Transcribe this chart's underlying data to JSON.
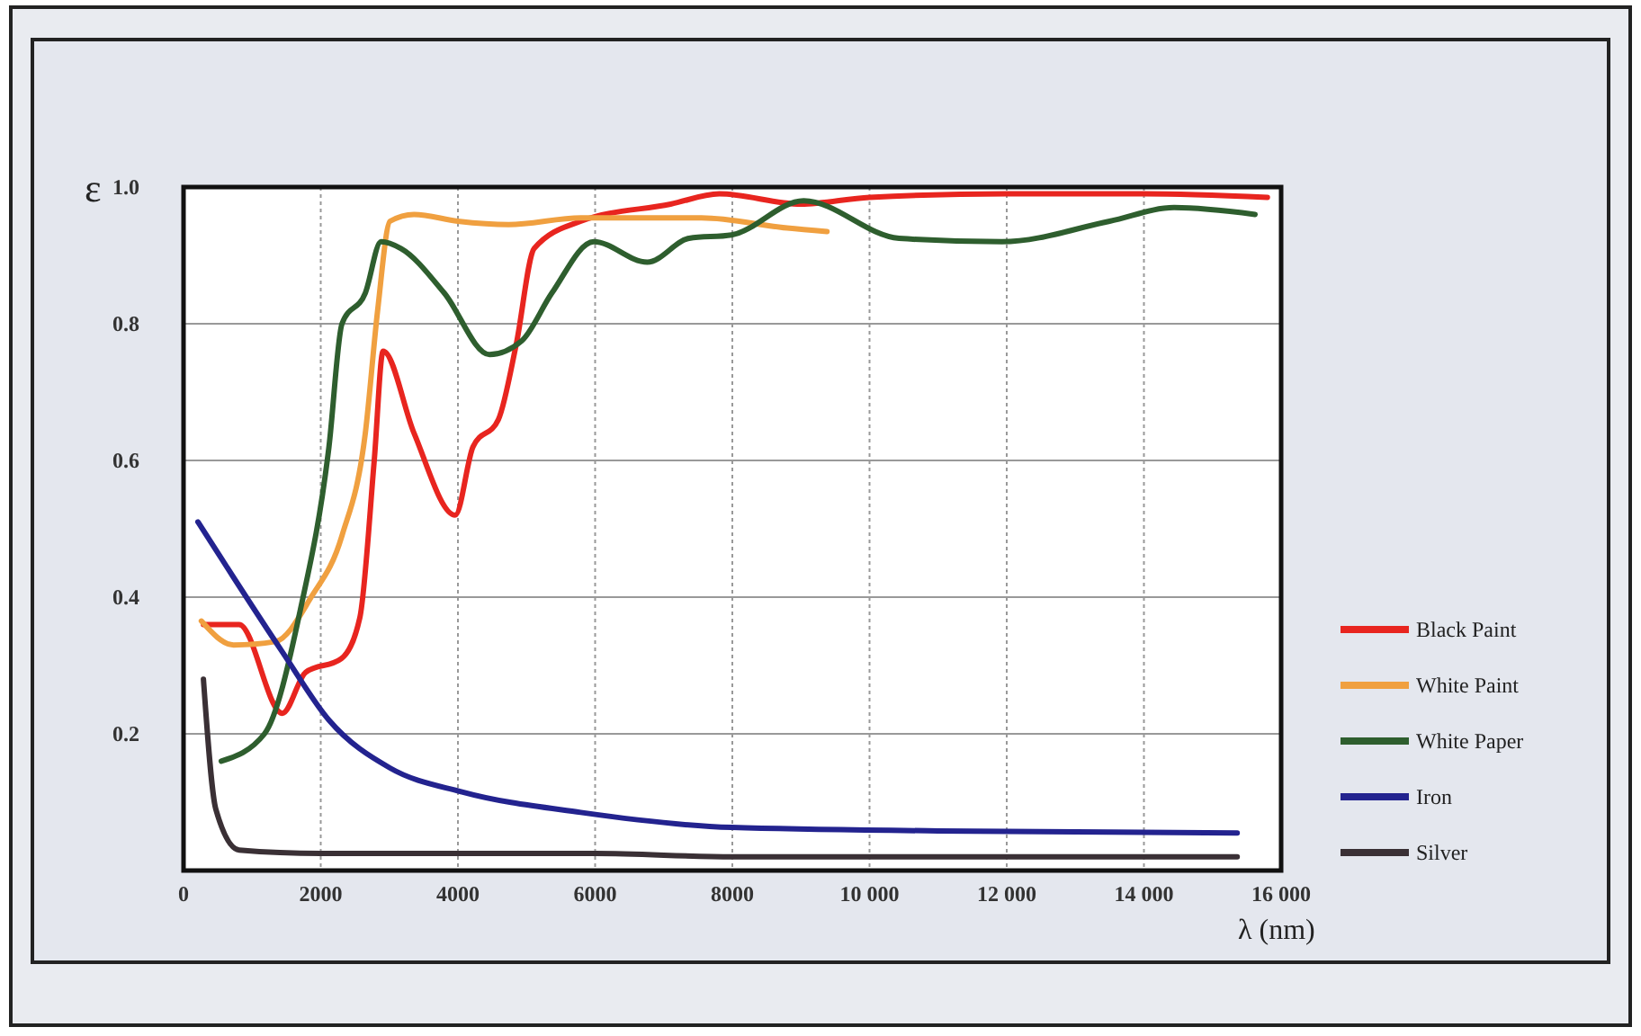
{
  "chart_data": {
    "type": "line",
    "ylabel": "ε",
    "xlabel": "λ (nm)",
    "xlim": [
      0,
      16000
    ],
    "ylim": [
      0,
      1
    ],
    "xticks": [
      0,
      2000,
      4000,
      6000,
      8000,
      {
        "value": 10000,
        "label": "10 000"
      },
      {
        "value": 12000,
        "label": "12 000"
      },
      {
        "value": 14000,
        "label": "14 000"
      },
      {
        "value": 16000,
        "label": "16 000"
      }
    ],
    "yticks": [
      0.2,
      0.4,
      0.6,
      0.8,
      {
        "value": 1,
        "label": "1.0"
      }
    ],
    "grid": true,
    "legend": "right",
    "line_style": "solid",
    "marker": "none",
    "series": [
      {
        "name": "Black Paint",
        "color": "#e8251f",
        "x": [
          290,
          810,
          1440,
          1780,
          2300,
          2570,
          2780,
          2910,
          3360,
          3960,
          4220,
          4590,
          4850,
          5110,
          5790,
          7100,
          7810,
          9000,
          10000,
          12000,
          14000,
          15800
        ],
        "values": [
          0.36,
          0.36,
          0.23,
          0.29,
          0.31,
          0.37,
          0.6,
          0.76,
          0.64,
          0.52,
          0.62,
          0.66,
          0.77,
          0.91,
          0.95,
          0.975,
          0.99,
          0.975,
          0.985,
          0.99,
          0.99,
          0.985
        ]
      },
      {
        "name": "White Paint",
        "color": "#f0a040",
        "x": [
          260,
          730,
          1340,
          1860,
          2310,
          2650,
          2830,
          3010,
          3360,
          4000,
          4740,
          5790,
          7550,
          8800,
          9380
        ],
        "values": [
          0.365,
          0.33,
          0.335,
          0.4,
          0.49,
          0.64,
          0.82,
          0.95,
          0.96,
          0.95,
          0.945,
          0.955,
          0.955,
          0.94,
          0.935
        ]
      },
      {
        "name": "White Paper",
        "color": "#2e5e2e",
        "x": [
          550,
          1180,
          1700,
          2120,
          2310,
          2650,
          2880,
          3170,
          3800,
          4460,
          4930,
          5370,
          5980,
          6760,
          7370,
          7990,
          9040,
          10430,
          11930,
          13500,
          14440,
          15620
        ],
        "values": [
          0.16,
          0.2,
          0.38,
          0.62,
          0.8,
          0.845,
          0.92,
          0.91,
          0.845,
          0.755,
          0.775,
          0.845,
          0.92,
          0.89,
          0.925,
          0.93,
          0.98,
          0.925,
          0.92,
          0.95,
          0.97,
          0.96
        ]
      },
      {
        "name": "Iron",
        "color": "#23238f",
        "x": [
          210,
          1440,
          2120,
          3010,
          4060,
          5790,
          7990,
          11000,
          15360
        ],
        "values": [
          0.51,
          0.32,
          0.22,
          0.15,
          0.115,
          0.085,
          0.063,
          0.058,
          0.055
        ]
      },
      {
        "name": "Silver",
        "color": "#3a3035",
        "x": [
          290,
          470,
          810,
          2000,
          6000,
          8000,
          15360
        ],
        "values": [
          0.28,
          0.09,
          0.03,
          0.025,
          0.025,
          0.02,
          0.02
        ]
      }
    ]
  }
}
